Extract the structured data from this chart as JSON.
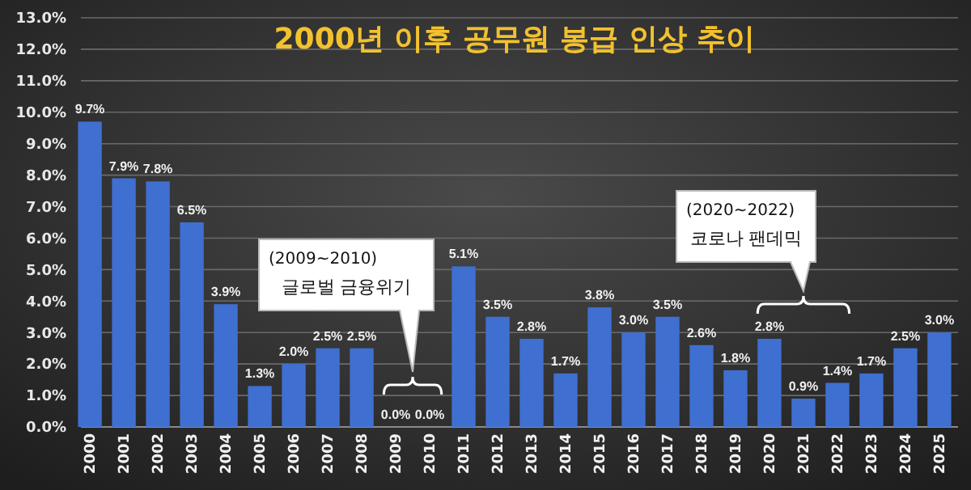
{
  "chart_data": {
    "type": "bar",
    "title": "2000년 이후 공무원 봉급 인상 추이",
    "categories": [
      "2000",
      "2001",
      "2002",
      "2003",
      "2004",
      "2005",
      "2006",
      "2007",
      "2008",
      "2009",
      "2010",
      "2011",
      "2012",
      "2013",
      "2014",
      "2015",
      "2016",
      "2017",
      "2018",
      "2019",
      "2020",
      "2021",
      "2022",
      "2023",
      "2024",
      "2025"
    ],
    "values": [
      9.7,
      7.9,
      7.8,
      6.5,
      3.9,
      1.3,
      2.0,
      2.5,
      2.5,
      0.0,
      0.0,
      5.1,
      3.5,
      2.8,
      1.7,
      3.8,
      3.0,
      3.5,
      2.6,
      1.8,
      2.8,
      0.9,
      1.4,
      1.7,
      2.5,
      3.0
    ],
    "value_labels": [
      "9.7%",
      "7.9%",
      "7.8%",
      "6.5%",
      "3.9%",
      "1.3%",
      "2.0%",
      "2.5%",
      "2.5%",
      "0.0%",
      "0.0%",
      "5.1%",
      "3.5%",
      "2.8%",
      "1.7%",
      "3.8%",
      "3.0%",
      "3.5%",
      "2.6%",
      "1.8%",
      "2.8%",
      "0.9%",
      "1.4%",
      "1.7%",
      "2.5%",
      "3.0%"
    ],
    "color": "#3f6fd0",
    "ylim": [
      0,
      13
    ],
    "yticks": [
      {
        "value": 0,
        "label": "0.0%"
      },
      {
        "value": 1,
        "label": "1.0%"
      },
      {
        "value": 2,
        "label": "2.0%"
      },
      {
        "value": 3,
        "label": "3.0%"
      },
      {
        "value": 4,
        "label": "4.0%"
      },
      {
        "value": 5,
        "label": "5.0%"
      },
      {
        "value": 6,
        "label": "6.0%"
      },
      {
        "value": 7,
        "label": "7.0%"
      },
      {
        "value": 8,
        "label": "8.0%"
      },
      {
        "value": 9,
        "label": "9.0%"
      },
      {
        "value": 10,
        "label": "10.0%"
      },
      {
        "value": 11,
        "label": "11.0%"
      },
      {
        "value": 12,
        "label": "12.0%"
      },
      {
        "value": 13,
        "label": "13.0%"
      }
    ],
    "grid": "y",
    "annotations": [
      "(2009~2010)\n글로벌 금융위기",
      "(2020~2022)\n코로나 팬데믹"
    ]
  }
}
